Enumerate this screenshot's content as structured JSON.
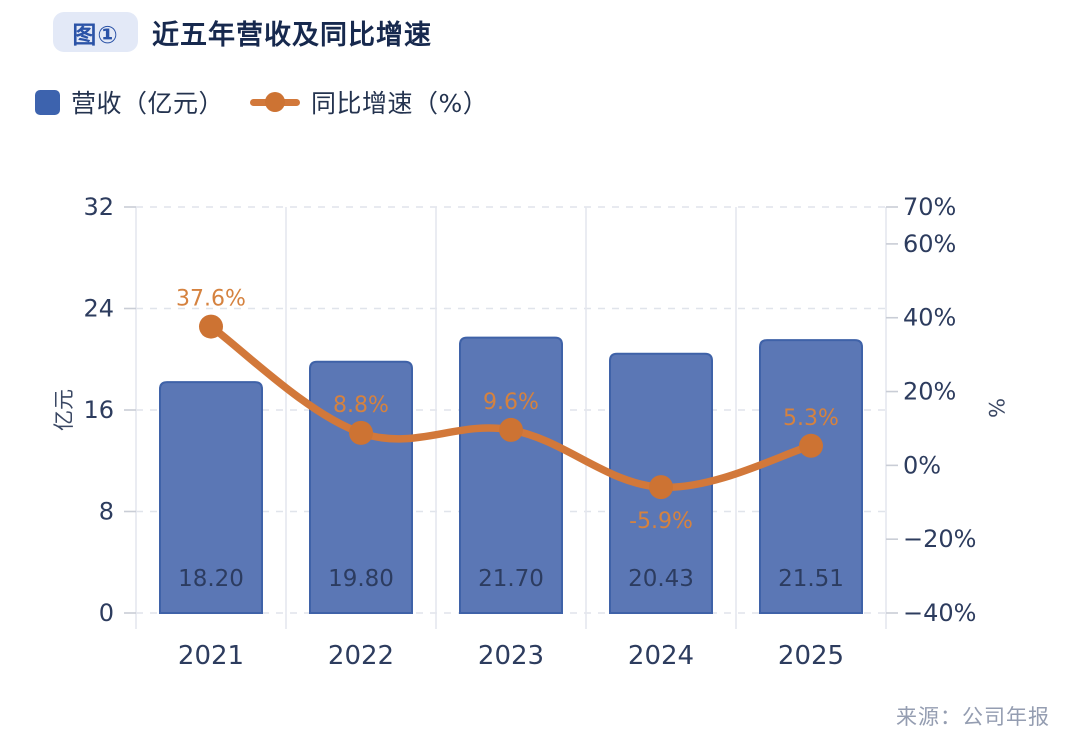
{
  "header": {
    "badge": "图①",
    "title": "近五年营收及同比增速"
  },
  "legend": {
    "items": [
      {
        "label": "营收（亿元）",
        "marker": "square",
        "color": "#3d63ae"
      },
      {
        "label": "同比增速（%）",
        "marker": "line-dot",
        "line_color": "#d2783a",
        "dot_color": "#cd7333"
      }
    ]
  },
  "footer": {
    "source": "来源：公司年报"
  },
  "colors": {
    "title": "#17294e",
    "badge_bg": "#e3e9f7",
    "badge_text": "#2b53a7",
    "legend_text": "#24334f",
    "tick_text": "#2d3c5e",
    "axis_name_text": "#3a4763",
    "grid_vertical": "#e4e7ee",
    "grid_horizontal": "#e0e4eb",
    "tick_mark": "#c9cdd6",
    "source_text": "#949db1"
  },
  "chart_data": {
    "type": "bar+line combo",
    "title": "近五年营收及同比增速",
    "categories": [
      "2021",
      "2022",
      "2023",
      "2024",
      "2025"
    ],
    "series": [
      {
        "name": "营收（亿元）",
        "type": "bar",
        "axis": "left",
        "values": [
          18.2,
          19.8,
          21.7,
          20.43,
          21.51
        ],
        "labels": [
          "18.20",
          "19.80",
          "21.70",
          "20.43",
          "21.51"
        ],
        "fill": "#5b77b5",
        "stroke": "#3f62a8",
        "label_color": "#2c3c60"
      },
      {
        "name": "同比增速（%）",
        "type": "line",
        "axis": "right",
        "values": [
          37.6,
          8.8,
          9.6,
          -5.9,
          5.3
        ],
        "labels": [
          "37.6%",
          "8.8%",
          "9.6%",
          "-5.9%",
          "5.3%"
        ],
        "label_placement": [
          "above",
          "above",
          "above",
          "below",
          "above"
        ],
        "line_color": "#d2783a",
        "dot_color": "#cd7333",
        "label_color": "#d5823f",
        "smooth": true
      }
    ],
    "left_axis": {
      "name": "亿元",
      "min": 0,
      "max": 32,
      "ticks": [
        {
          "v": 0,
          "label": "0"
        },
        {
          "v": 8,
          "label": "8"
        },
        {
          "v": 16,
          "label": "16"
        },
        {
          "v": 24,
          "label": "24"
        },
        {
          "v": 32,
          "label": "32"
        }
      ]
    },
    "right_axis": {
      "name": "%",
      "min": -40,
      "max": 70,
      "ticks": [
        {
          "v": 70,
          "label": "70%"
        },
        {
          "v": 60,
          "label": "60%"
        },
        {
          "v": 40,
          "label": "40%"
        },
        {
          "v": 20,
          "label": "20%"
        },
        {
          "v": 0,
          "label": "0%"
        },
        {
          "v": -20,
          "label": "−20%"
        },
        {
          "v": -40,
          "label": "−40%"
        }
      ]
    },
    "grid": {
      "horizontal": "dashed",
      "vertical": "solid",
      "legend_position": "top-left"
    }
  }
}
